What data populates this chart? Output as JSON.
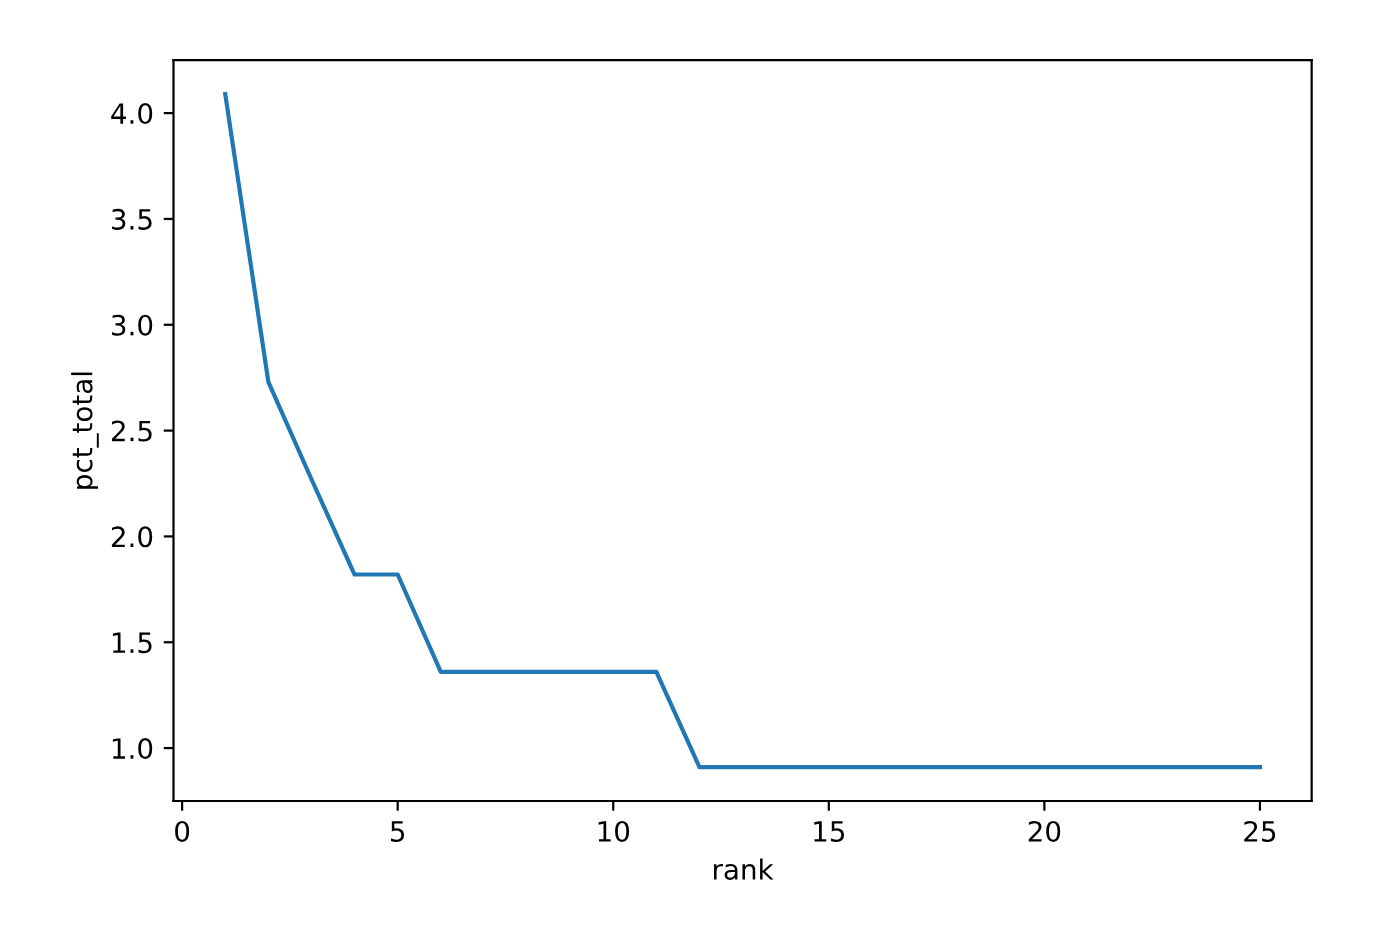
{
  "chart_data": {
    "type": "line",
    "xlabel": "rank",
    "ylabel": "pct_total",
    "x": [
      1,
      2,
      3,
      4,
      5,
      6,
      7,
      8,
      9,
      10,
      11,
      12,
      13,
      14,
      15,
      16,
      17,
      18,
      19,
      20,
      21,
      22,
      23,
      24,
      25
    ],
    "series": [
      {
        "color": "#1f77b4",
        "values": [
          4.09,
          2.73,
          2.27,
          1.82,
          1.82,
          1.36,
          1.36,
          1.36,
          1.36,
          1.36,
          1.36,
          0.91,
          0.91,
          0.91,
          0.91,
          0.91,
          0.91,
          0.91,
          0.91,
          0.91,
          0.91,
          0.91,
          0.91,
          0.91,
          0.91
        ]
      }
    ],
    "xlim": [
      -0.2,
      26.2
    ],
    "ylim": [
      0.75,
      4.25
    ],
    "xticks": [
      0,
      5,
      10,
      15,
      20,
      25
    ],
    "yticks": [
      {
        "value": 1.0,
        "label": "1.0"
      },
      {
        "value": 1.5,
        "label": "1.5"
      },
      {
        "value": 2.0,
        "label": "2.0"
      },
      {
        "value": 2.5,
        "label": "2.5"
      },
      {
        "value": 3.0,
        "label": "3.0"
      },
      {
        "value": 3.5,
        "label": "3.5"
      },
      {
        "value": 4.0,
        "label": "4.0"
      }
    ],
    "grid": false,
    "legend": false
  }
}
